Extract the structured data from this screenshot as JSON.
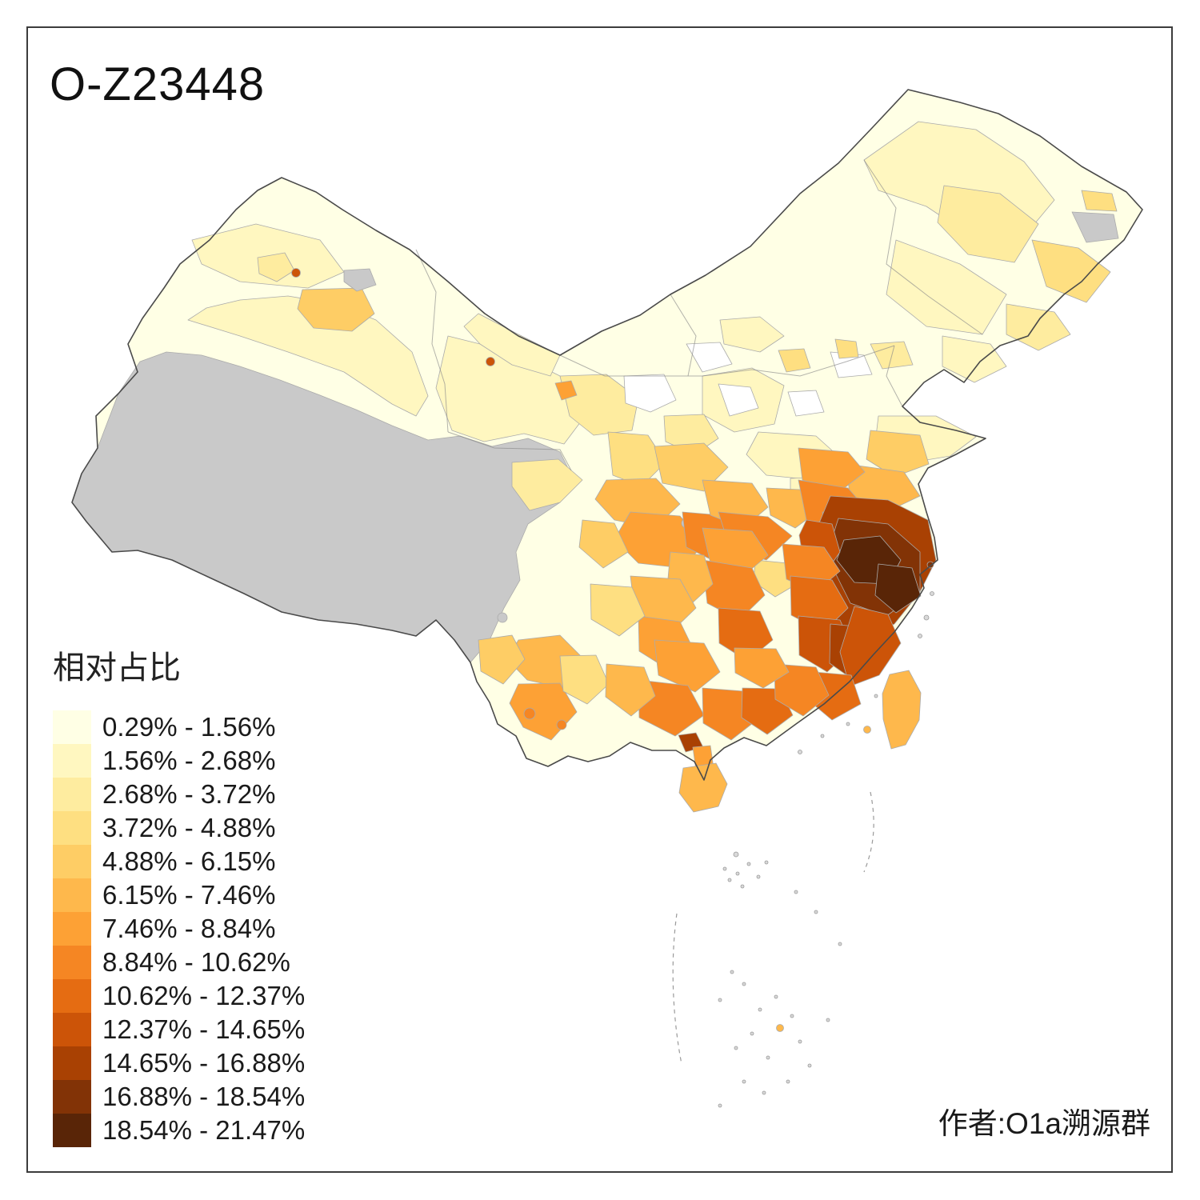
{
  "title": "O-Z23448",
  "legend": {
    "title": "相对占比",
    "no_data_color": "#C9C9C9",
    "classes": [
      {
        "range": "0.29% - 1.56%",
        "color": "#FFFFE5"
      },
      {
        "range": "1.56% - 2.68%",
        "color": "#FFF7C0"
      },
      {
        "range": "2.68% - 3.72%",
        "color": "#FEEC9F"
      },
      {
        "range": "3.72% - 4.88%",
        "color": "#FEDF81"
      },
      {
        "range": "4.88% - 6.15%",
        "color": "#FECD65"
      },
      {
        "range": "6.15% - 7.46%",
        "color": "#FEB84C"
      },
      {
        "range": "7.46% - 8.84%",
        "color": "#FDA135"
      },
      {
        "range": "8.84% - 10.62%",
        "color": "#F58623"
      },
      {
        "range": "10.62% - 12.37%",
        "color": "#E56C12"
      },
      {
        "range": "12.37% - 14.65%",
        "color": "#CC5408"
      },
      {
        "range": "14.65% - 16.88%",
        "color": "#A94103"
      },
      {
        "range": "16.88% - 18.54%",
        "color": "#823306"
      },
      {
        "range": "18.54% - 21.47%",
        "color": "#592507"
      }
    ]
  },
  "attribution": "作者:O1a溯源群",
  "chart_data": {
    "type": "choropleth",
    "map": "China, prefecture-level divisions",
    "title": "O-Z23448",
    "legend_title": "相对占比",
    "unit": "%",
    "class_breaks": [
      0.29,
      1.56,
      2.68,
      3.72,
      4.88,
      6.15,
      7.46,
      8.84,
      10.62,
      12.37,
      14.65,
      16.88,
      18.54,
      21.47
    ],
    "palette": [
      "#FFFFE5",
      "#FFF7C0",
      "#FEEC9F",
      "#FEDF81",
      "#FECD65",
      "#FEB84C",
      "#FDA135",
      "#F58623",
      "#E56C12",
      "#CC5408",
      "#A94103",
      "#823306",
      "#592507"
    ],
    "no_data_color": "#C9C9C9",
    "value_min_pct": 0.29,
    "value_max_pct": 21.47,
    "attribution": "作者:O1a溯源群",
    "pattern": "Highest shares (dark brown, up to 21.47%) in southeast coastal China around Zhejiang/south Jiangsu/Shanghai, grading through Fujian, Jiangxi, Anhui, Hunan, Guangdong; pale yellow (lowest) across north and northwest China; gray no-data over Tibet and adjacent western areas."
  }
}
